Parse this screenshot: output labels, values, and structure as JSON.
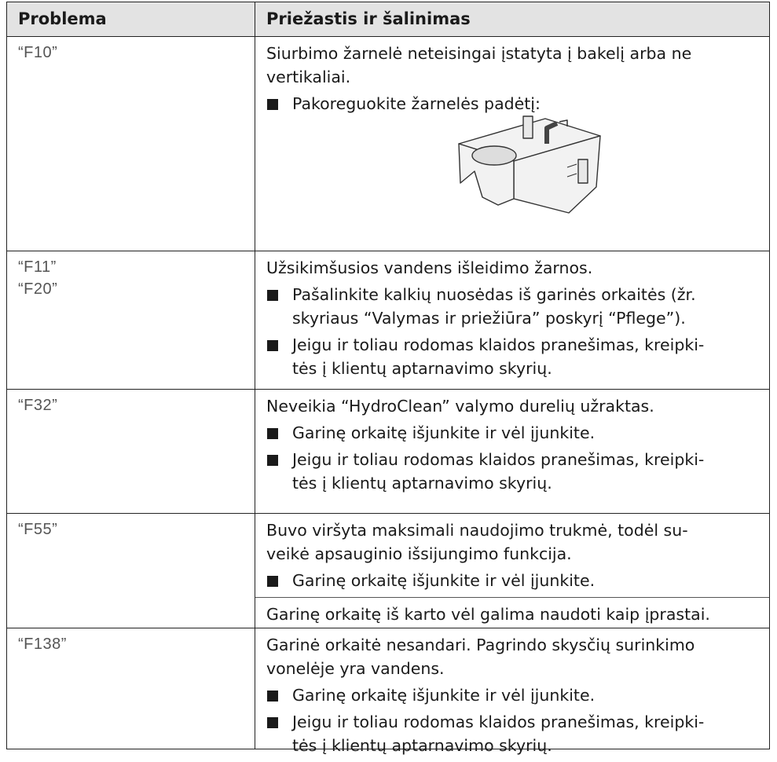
{
  "table": {
    "header": [
      "Problema",
      "Priežastis ir šalinimas"
    ],
    "rows": [
      {
        "problem": [
          "“F10”"
        ],
        "sections": [
          [
            {
              "kind": "text",
              "lines": [
                "Siurbimo žarnelė neteisingai įstatyta į bakelį arba ne",
                "vertikaliai."
              ]
            },
            {
              "kind": "bullet",
              "lines": [
                "Pakoreguokite žarnelės padėtį:"
              ]
            },
            {
              "kind": "figure"
            }
          ]
        ]
      },
      {
        "problem": [
          "“F11”",
          "“F20”"
        ],
        "sections": [
          [
            {
              "kind": "text",
              "lines": [
                "Užsikimšusios vandens išleidimo žarnos."
              ]
            },
            {
              "kind": "bullet",
              "lines": [
                "Pašalinkite kalkių nuosėdas iš garinės orkaitės (žr.",
                "skyriaus “Valymas ir priežiūra” poskyrį “Pflege”)."
              ]
            },
            {
              "kind": "bullet",
              "lines": [
                "Jeigu ir toliau rodomas klaidos pranešimas, kreipki-",
                "tės į klientų aptarnavimo skyrių."
              ]
            }
          ]
        ]
      },
      {
        "problem": [
          "“F32”"
        ],
        "sections": [
          [
            {
              "kind": "text",
              "lines": [
                "Neveikia “HydroClean” valymo durelių užraktas."
              ]
            },
            {
              "kind": "bullet",
              "lines": [
                "Garinę orkaitę išjunkite ir vėl įjunkite."
              ]
            },
            {
              "kind": "bullet",
              "lines": [
                "Jeigu ir toliau rodomas klaidos pranešimas, kreipki-",
                "tės į klientų aptarnavimo skyrių."
              ]
            }
          ]
        ]
      },
      {
        "problem": [
          "“F55”"
        ],
        "sections": [
          [
            {
              "kind": "text",
              "lines": [
                "Buvo viršyta maksimali naudojimo trukmė, todėl su-",
                "veikė apsauginio išsijungimo funkcija."
              ]
            },
            {
              "kind": "bullet",
              "lines": [
                "Garinę orkaitę išjunkite ir vėl įjunkite."
              ]
            }
          ],
          [
            {
              "kind": "text",
              "lines": [
                "Garinę orkaitę iš karto vėl galima naudoti kaip įprastai."
              ]
            }
          ]
        ]
      },
      {
        "problem": [
          "“F138”"
        ],
        "sections": [
          [
            {
              "kind": "text",
              "lines": [
                "Garinė orkaitė nesandari. Pagrindo skysčių surinkimo",
                "vonelėje yra vandens."
              ]
            },
            {
              "kind": "bullet",
              "lines": [
                "Garinę orkaitę išjunkite ir vėl įjunkite."
              ]
            },
            {
              "kind": "bullet",
              "lines": [
                "Jeigu ir toliau rodomas klaidos pranešimas, kreipki-",
                "tės į klientų aptarnavimo skyrių."
              ]
            }
          ]
        ]
      }
    ]
  }
}
